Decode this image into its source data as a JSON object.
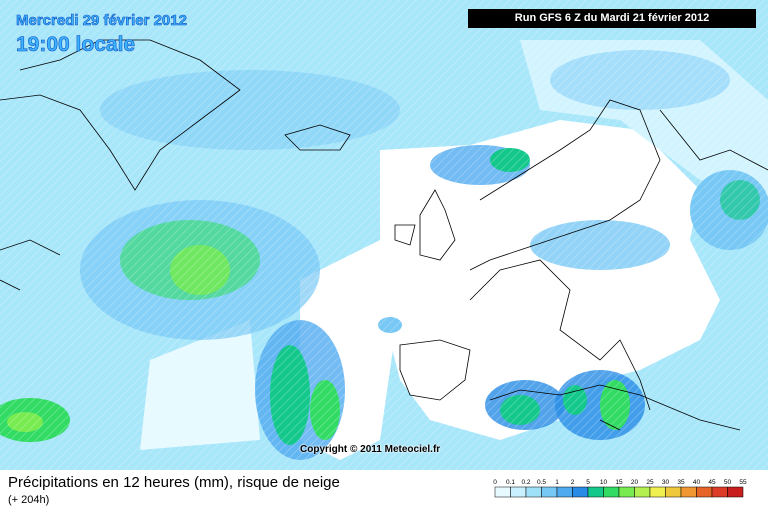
{
  "header": {
    "date": "Mercredi 29 février 2012",
    "time": "19:00 locale",
    "run": "Run GFS 6 Z du Mardi 21 février 2012"
  },
  "copyright": "Copyright © 2011 Meteociel.fr",
  "footer": {
    "title": "Précipitations en 12 heures (mm), risque de neige",
    "lead": "(+ 204h)"
  },
  "legend": {
    "labels": [
      "0",
      "0.1",
      "0.2",
      "0.5",
      "1",
      "2",
      "5",
      "10",
      "15",
      "20",
      "25",
      "30",
      "35",
      "40",
      "45",
      "50",
      "55"
    ],
    "colors": [
      "#e6faff",
      "#c8f0ff",
      "#a0e1fa",
      "#78c8f5",
      "#50aaf0",
      "#288ce6",
      "#14c88c",
      "#32dc64",
      "#78eb50",
      "#b4f050",
      "#f0f050",
      "#f0c83c",
      "#f09632",
      "#e66428",
      "#dc3c28",
      "#c81e1e"
    ]
  }
}
